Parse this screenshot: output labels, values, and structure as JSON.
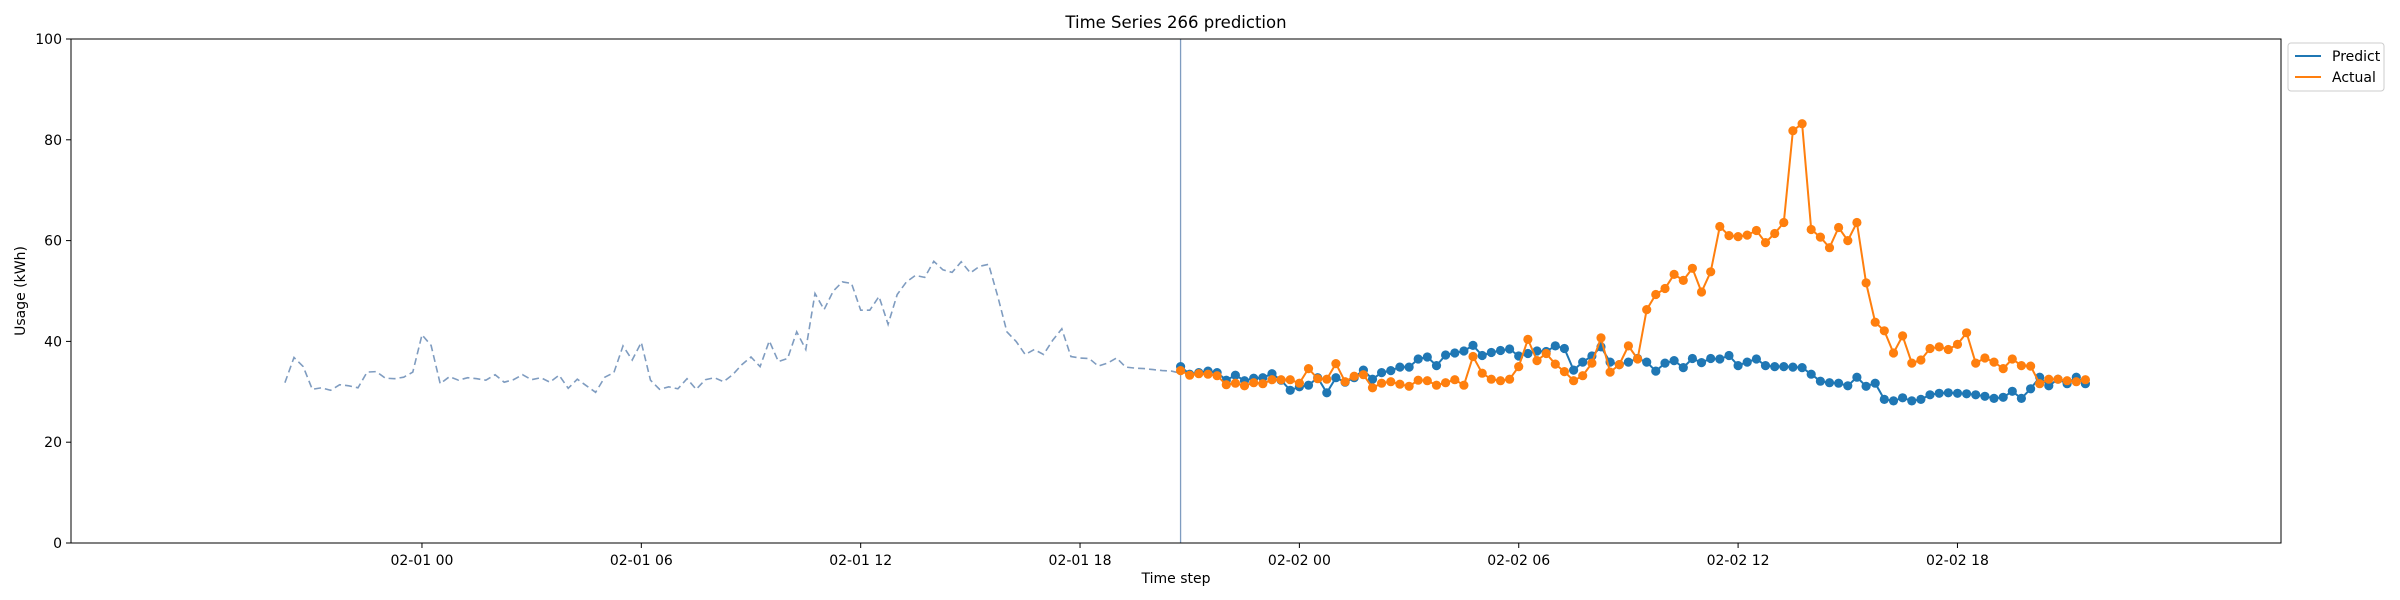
{
  "chart_data": {
    "type": "line",
    "title": "Time Series 266 prediction",
    "xlabel": "Time step",
    "ylabel": "Usage (kWh)",
    "ylim": [
      0,
      100
    ],
    "y_ticks": [
      0,
      20,
      40,
      60,
      80,
      100
    ],
    "x_range_hours": [
      -9.6,
      50.85
    ],
    "x_ticks": [
      {
        "label": "02-01 00",
        "hour": 0
      },
      {
        "label": "02-01 06",
        "hour": 6
      },
      {
        "label": "02-01 12",
        "hour": 12
      },
      {
        "label": "02-01 18",
        "hour": 18
      },
      {
        "label": "02-02 00",
        "hour": 24
      },
      {
        "label": "02-02 06",
        "hour": 30
      },
      {
        "label": "02-02 12",
        "hour": 36
      },
      {
        "label": "02-02 18",
        "hour": 42
      }
    ],
    "x_start": "02-01 -8h",
    "step_hours": 0.25,
    "forecast_start_hour": 20.75,
    "grid": false,
    "legend_position": "upper right, outside plot",
    "history": {
      "color": "#7f9cc0",
      "style": "dashed",
      "values": [
        31.8,
        36.8,
        35.0,
        30.5,
        30.8,
        30.3,
        31.4,
        31.2,
        30.8,
        33.9,
        34.0,
        32.7,
        32.6,
        32.9,
        33.9,
        41.3,
        39.2,
        31.6,
        33.0,
        32.3,
        32.8,
        32.6,
        32.3,
        33.4,
        31.9,
        32.4,
        33.4,
        32.4,
        32.8,
        31.9,
        33.3,
        30.7,
        32.5,
        31.2,
        29.9,
        32.9,
        33.8,
        39.1,
        36.3,
        39.8,
        32.3,
        30.5,
        31.0,
        30.6,
        32.6,
        30.5,
        32.4,
        32.8,
        32.0,
        33.4,
        35.4,
        36.9,
        35.0,
        40.1,
        36.0,
        36.6,
        41.9,
        38.4,
        49.5,
        46.3,
        50.0,
        51.8,
        51.5,
        46.2,
        46.2,
        48.9,
        43.4,
        49.3,
        51.8,
        53.1,
        52.7,
        55.9,
        54.2,
        53.7,
        55.8,
        53.6,
        54.9,
        55.3,
        48.9,
        41.9,
        40.0,
        37.4,
        38.4,
        37.4,
        40.2,
        42.5,
        37.0,
        36.7,
        36.6,
        35.1,
        35.7,
        36.7,
        34.9,
        34.7,
        34.6,
        34.4,
        34.2,
        34.1,
        33.7
      ]
    },
    "series": [
      {
        "name": "Predict",
        "color": "#1f77b4",
        "values": [
          35.0,
          33.5,
          33.8,
          34.1,
          33.8,
          32.3,
          33.3,
          32.2,
          32.7,
          32.8,
          33.6,
          32.3,
          30.3,
          31.0,
          31.3,
          32.8,
          29.8,
          32.8,
          31.9,
          32.8,
          34.3,
          32.5,
          33.8,
          34.2,
          34.9,
          34.9,
          36.5,
          36.9,
          35.2,
          37.3,
          37.7,
          38.1,
          39.2,
          37.2,
          37.8,
          38.2,
          38.5,
          37.1,
          37.6,
          38.1,
          38.0,
          39.1,
          38.6,
          34.3,
          35.9,
          37.1,
          38.9,
          35.9,
          35.4,
          35.9,
          36.6,
          35.9,
          34.1,
          35.7,
          36.2,
          34.8,
          36.6,
          35.8,
          36.6,
          36.5,
          37.2,
          35.2,
          35.9,
          36.5,
          35.2,
          35.0,
          35.0,
          34.9,
          34.8,
          33.5,
          32.1,
          31.8,
          31.7,
          31.2,
          32.9,
          31.1,
          31.7,
          28.5,
          28.2,
          28.8,
          28.2,
          28.5,
          29.4,
          29.7,
          29.8,
          29.7,
          29.6,
          29.4,
          29.1,
          28.7,
          28.9,
          30.1,
          28.7,
          30.6,
          32.9,
          31.2,
          32.5,
          31.6,
          32.9,
          31.6
        ]
      },
      {
        "name": "Actual",
        "color": "#ff7f0e",
        "values": [
          34.2,
          33.3,
          33.6,
          33.5,
          33.2,
          31.4,
          31.7,
          31.2,
          31.8,
          31.6,
          32.4,
          32.4,
          32.4,
          31.7,
          34.6,
          32.6,
          32.5,
          35.6,
          32.0,
          33.1,
          33.4,
          30.8,
          31.7,
          32.0,
          31.5,
          31.1,
          32.3,
          32.2,
          31.3,
          31.8,
          32.4,
          31.3,
          37.0,
          33.7,
          32.5,
          32.2,
          32.5,
          35.0,
          40.4,
          36.2,
          37.6,
          35.5,
          34.0,
          32.2,
          33.2,
          35.7,
          40.7,
          33.9,
          35.4,
          39.1,
          36.5,
          46.3,
          49.3,
          50.5,
          53.3,
          52.1,
          54.5,
          49.8,
          53.8,
          62.8,
          61.0,
          60.8,
          61.1,
          62.0,
          59.6,
          61.4,
          63.6,
          81.8,
          83.2,
          62.2,
          60.7,
          58.6,
          62.6,
          60.0,
          63.6,
          51.6,
          43.8,
          42.1,
          37.7,
          41.1,
          35.7,
          36.3,
          38.6,
          38.9,
          38.4,
          39.4,
          41.7,
          35.7,
          36.7,
          35.9,
          34.6,
          36.5,
          35.2,
          35.1,
          31.6,
          32.5,
          32.5,
          32.2,
          32.0,
          32.4
        ]
      }
    ]
  }
}
